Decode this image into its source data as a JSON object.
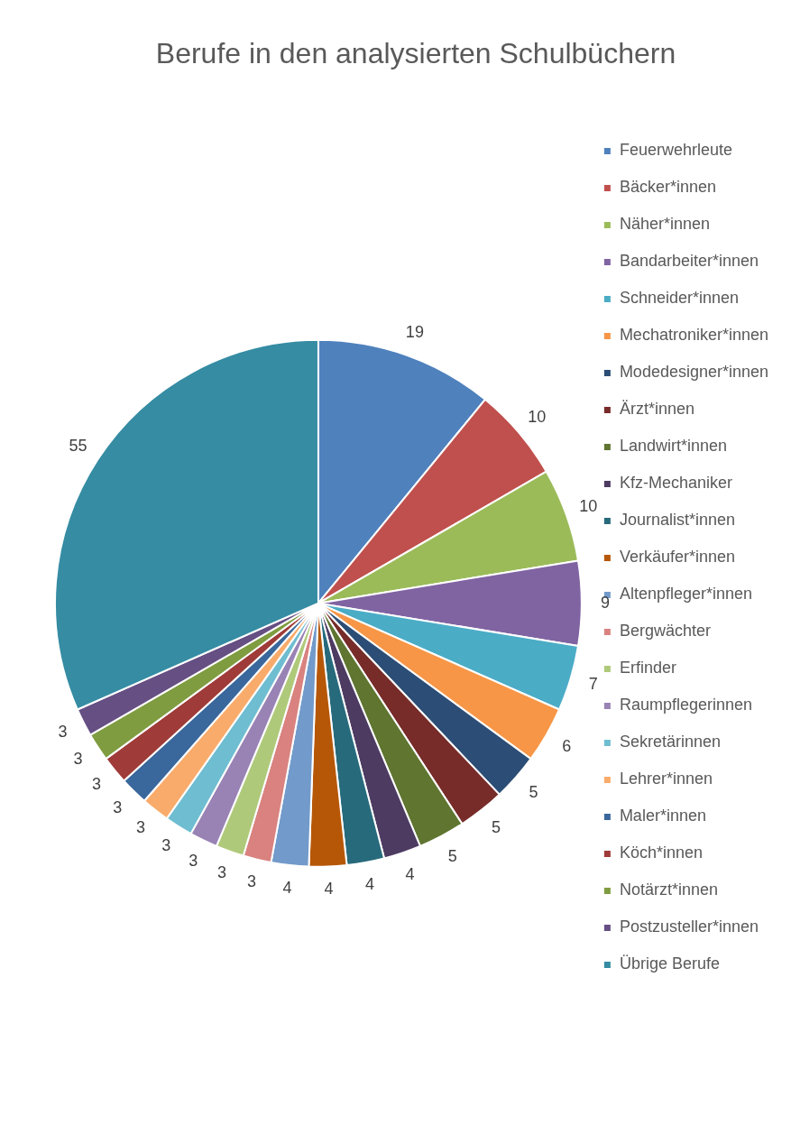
{
  "chart_data": {
    "type": "pie",
    "title": "Berufe in den analysierten Schulbüchern",
    "categories": [
      "Feuerwehrleute",
      "Bäcker*innen",
      "Näher*innen",
      "Bandarbeiter*innen",
      "Schneider*innen",
      "Mechatroniker*innen",
      "Modedesigner*innen",
      "Ärzt*innen",
      "Landwirt*innen",
      "Kfz-Mechaniker",
      "Journalist*innen",
      "Verkäufer*innen",
      "Altenpfleger*innen",
      "Bergwächter",
      "Erfinder",
      "Raumpflegerinnen",
      "Sekretärinnen",
      "Lehrer*innen",
      "Maler*innen",
      "Köch*innen",
      "Notärzt*innen",
      "Postzusteller*innen",
      "Übrige Berufe"
    ],
    "values": [
      19,
      10,
      10,
      9,
      7,
      6,
      5,
      5,
      5,
      4,
      4,
      4,
      4,
      3,
      3,
      3,
      3,
      3,
      3,
      3,
      3,
      3,
      55
    ],
    "colors": [
      "#4f81bd",
      "#c0504d",
      "#9bbb59",
      "#8064a2",
      "#4bacc6",
      "#f79646",
      "#2c4d75",
      "#772c2a",
      "#5f7530",
      "#4d3b62",
      "#276a7c",
      "#b65708",
      "#729aca",
      "#d9827f",
      "#afc97a",
      "#9983b5",
      "#6fbdd1",
      "#f9ab6b",
      "#3a679c",
      "#9f3b38",
      "#7f9c40",
      "#664f83",
      "#358ca3"
    ],
    "legend": "right",
    "data_labels": true
  }
}
